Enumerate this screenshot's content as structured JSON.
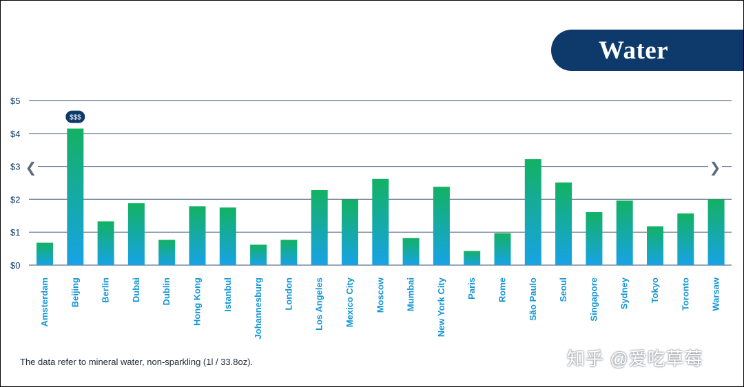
{
  "title": "Water",
  "badge": "$$$",
  "footnote": "The data refer to mineral water, non-sparkling (1l / 33.8oz).",
  "watermark": "知乎 @爱吃草莓",
  "nav": {
    "prev_icon": "chevron-left-icon",
    "next_icon": "chevron-right-icon",
    "prev_glyph": "❮",
    "next_glyph": "❯"
  },
  "colors": {
    "title_bg": "#0d3a6b",
    "bar_top": "#13b163",
    "bar_bottom": "#17a3e6",
    "grid": "#5c7286",
    "axis_text": "#0d3a6b",
    "category_text": "#1295d3",
    "badge_bg": "#0d3a6b"
  },
  "chart_data": {
    "type": "bar",
    "categories": [
      "Amsterdam",
      "Beijing",
      "Berlin",
      "Dubai",
      "Dublin",
      "Hong Kong",
      "Istanbul",
      "Johannesburg",
      "London",
      "Los Angeles",
      "Mexico City",
      "Moscow",
      "Mumbai",
      "New York City",
      "Paris",
      "Rome",
      "São Paulo",
      "Seoul",
      "Singapore",
      "Sydney",
      "Tokyo",
      "Toronto",
      "Warsaw"
    ],
    "values": [
      0.68,
      4.15,
      1.33,
      1.88,
      0.77,
      1.79,
      1.75,
      0.62,
      0.77,
      2.28,
      1.99,
      2.62,
      0.82,
      2.38,
      0.43,
      0.97,
      3.22,
      2.51,
      1.61,
      1.96,
      1.18,
      1.57,
      2.0
    ],
    "yticks": [
      "$0",
      "$1",
      "$2",
      "$3",
      "$4",
      "$5"
    ],
    "ylim": [
      0,
      5
    ],
    "grid": true,
    "highlight_index": 1,
    "title": "Water",
    "xlabel": "",
    "ylabel": ""
  }
}
